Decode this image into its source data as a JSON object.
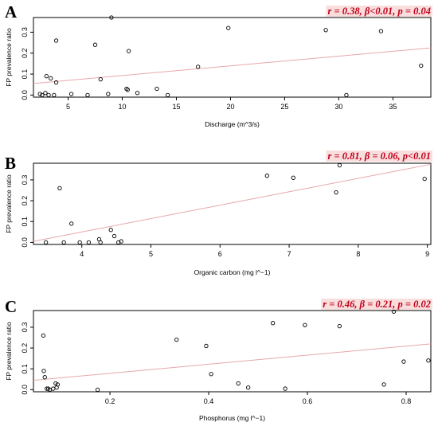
{
  "chart_data": [
    {
      "type": "scatter",
      "panel_label": "A",
      "stats_text": "r = 0.38, β<0.01, p = 0.04",
      "xlabel": "Discharge (m^3/s)",
      "ylabel": "FP prevalence ratio",
      "xlim": [
        1.8,
        38.5
      ],
      "ylim": [
        -0.01,
        0.37
      ],
      "xticks": [
        5,
        10,
        15,
        20,
        25,
        30,
        35
      ],
      "yticks": [
        0.0,
        0.1,
        0.2,
        0.3
      ],
      "x": [
        2.4,
        2.6,
        2.9,
        3.0,
        3.2,
        3.4,
        3.7,
        3.9,
        3.9,
        5.3,
        6.8,
        7.5,
        8.0,
        8.7,
        9.0,
        10.4,
        10.5,
        10.6,
        11.4,
        13.2,
        14.2,
        17.0,
        19.8,
        28.8,
        30.7,
        33.9,
        37.6
      ],
      "y": [
        0.005,
        0.0,
        0.01,
        0.09,
        0.0,
        0.08,
        0.0,
        0.26,
        0.06,
        0.005,
        0.0,
        0.24,
        0.075,
        0.005,
        0.37,
        0.03,
        0.025,
        0.21,
        0.01,
        0.03,
        0.0,
        0.135,
        0.32,
        0.31,
        0.0,
        0.305,
        0.14
      ],
      "fit": {
        "x": [
          1.8,
          38.5
        ],
        "y": [
          0.055,
          0.225
        ]
      },
      "grid": false
    },
    {
      "type": "scatter",
      "panel_label": "B",
      "stats_text": "r = 0.81, β = 0.06, p<0.01",
      "xlabel": "Organic carbon (mg l^−1)",
      "ylabel": "FP prevalence ratio",
      "xlim": [
        3.3,
        9.05
      ],
      "ylim": [
        -0.01,
        0.38
      ],
      "xticks": [
        4,
        5,
        6,
        7,
        8,
        9
      ],
      "yticks": [
        0.0,
        0.1,
        0.2,
        0.3
      ],
      "x": [
        3.48,
        3.68,
        3.74,
        3.85,
        3.97,
        4.1,
        4.25,
        4.27,
        4.42,
        4.47,
        4.53,
        4.57,
        6.68,
        7.06,
        7.68,
        7.73,
        8.96
      ],
      "y": [
        0.0,
        0.26,
        0.0,
        0.09,
        0.0,
        0.0,
        0.015,
        0.0,
        0.06,
        0.03,
        0.0,
        0.005,
        0.32,
        0.31,
        0.24,
        0.37,
        0.305
      ],
      "fit": {
        "x": [
          3.3,
          9.05
        ],
        "y": [
          0.005,
          0.375
        ]
      },
      "grid": false
    },
    {
      "type": "scatter",
      "panel_label": "C",
      "stats_text": "r = 0.46, β = 0.21, p = 0.02",
      "xlabel": "Phosphorus (mg l^−1)",
      "ylabel": "FP prevalence ratio",
      "xlim": [
        0.045,
        0.85
      ],
      "ylim": [
        -0.01,
        0.38
      ],
      "xticks": [
        0.2,
        0.4,
        0.6,
        0.8
      ],
      "yticks": [
        0.0,
        0.1,
        0.2,
        0.3
      ],
      "x": [
        0.065,
        0.066,
        0.068,
        0.072,
        0.075,
        0.078,
        0.085,
        0.09,
        0.092,
        0.094,
        0.175,
        0.335,
        0.395,
        0.405,
        0.46,
        0.48,
        0.53,
        0.555,
        0.595,
        0.665,
        0.755,
        0.775,
        0.795,
        0.845
      ],
      "y": [
        0.26,
        0.09,
        0.06,
        0.005,
        0.005,
        0.0,
        0.005,
        0.03,
        0.01,
        0.025,
        0.0,
        0.24,
        0.21,
        0.075,
        0.03,
        0.01,
        0.32,
        0.005,
        0.31,
        0.305,
        0.025,
        0.375,
        0.135,
        0.14
      ],
      "fit": {
        "x": [
          0.045,
          0.85
        ],
        "y": [
          0.045,
          0.22
        ]
      },
      "grid": false
    }
  ]
}
